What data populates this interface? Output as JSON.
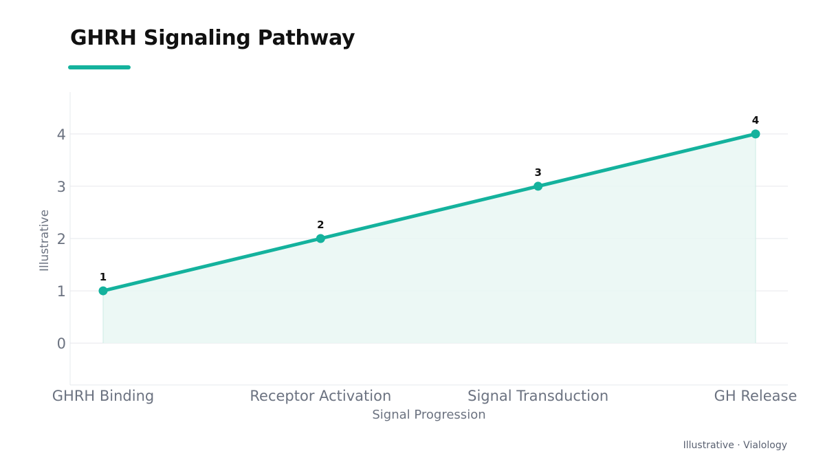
{
  "title": "GHRH Signaling Pathway",
  "footer": "Illustrative · Vialology",
  "colors": {
    "accent": "#14b29d",
    "area_fill": "#e9f7f3",
    "grid": "#e6e8ec",
    "axis_text": "#6b7280",
    "label_text": "#111111"
  },
  "chart_data": {
    "type": "line",
    "title": "GHRH Signaling Pathway",
    "xlabel": "Signal Progression",
    "ylabel": "Illustrative",
    "categories": [
      "GHRH Binding",
      "Receptor Activation",
      "Signal Transduction",
      "GH Release"
    ],
    "values": [
      1,
      2,
      3,
      4
    ],
    "data_labels": [
      "1",
      "2",
      "3",
      "4"
    ],
    "y_ticks": [
      "0",
      "1",
      "2",
      "3",
      "4"
    ],
    "ylim": [
      -0.8,
      4.8
    ],
    "area_fill": true,
    "grid": true,
    "legend": "none"
  }
}
